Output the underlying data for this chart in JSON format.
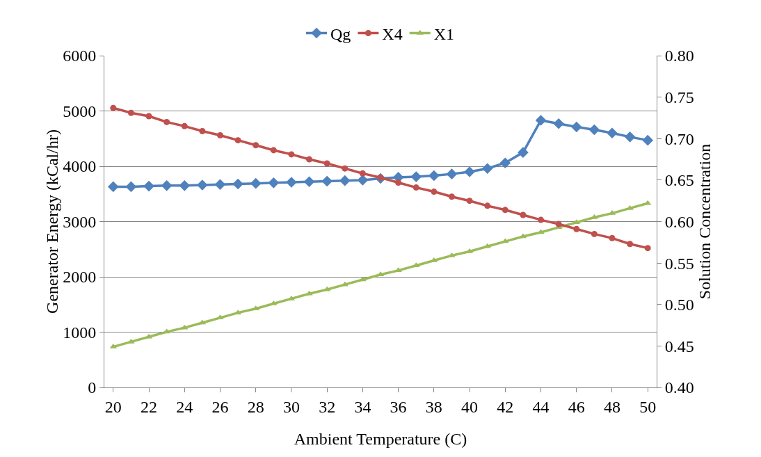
{
  "chart_data": {
    "type": "line",
    "xlabel": "Ambient Temperature (C)",
    "ylabel": "Generator Energy (kCal/hr)",
    "y2label": "Solution Concentration",
    "x": [
      20,
      21,
      22,
      23,
      24,
      25,
      26,
      27,
      28,
      29,
      30,
      31,
      32,
      33,
      34,
      35,
      36,
      37,
      38,
      39,
      40,
      41,
      42,
      43,
      44,
      45,
      46,
      47,
      48,
      49,
      50
    ],
    "xlim": [
      19.5,
      50.5
    ],
    "xticks": [
      20,
      22,
      24,
      26,
      28,
      30,
      32,
      34,
      36,
      38,
      40,
      42,
      44,
      46,
      48,
      50
    ],
    "ylim": [
      0,
      6000
    ],
    "yticks": [
      0,
      1000,
      2000,
      3000,
      4000,
      5000,
      6000
    ],
    "y2lim": [
      0.4,
      0.8
    ],
    "y2ticks": [
      {
        "value": 0.4,
        "label": "0.40"
      },
      {
        "value": 0.45,
        "label": "0.45"
      },
      {
        "value": 0.5,
        "label": "0.50"
      },
      {
        "value": 0.55,
        "label": "0.55"
      },
      {
        "value": 0.6,
        "label": "0.60"
      },
      {
        "value": 0.65,
        "label": "0.65"
      },
      {
        "value": 0.7,
        "label": "0.70"
      },
      {
        "value": 0.75,
        "label": "0.75"
      },
      {
        "value": 0.8,
        "label": "0.80"
      }
    ],
    "grid": "y",
    "legend": "top",
    "series": [
      {
        "name": "Qg",
        "color": "#4f81bd",
        "marker": "diamond",
        "values": [
          3630,
          3630,
          3640,
          3650,
          3650,
          3660,
          3670,
          3680,
          3690,
          3700,
          3710,
          3720,
          3730,
          3740,
          3750,
          3780,
          3800,
          3810,
          3830,
          3860,
          3900,
          3960,
          4060,
          4250,
          4830,
          4770,
          4710,
          4660,
          4600,
          4530,
          4470
        ]
      },
      {
        "name": "X4",
        "color": "#c0504d",
        "marker": "circle",
        "axis": "y2",
        "values": [
          0.737,
          0.731,
          0.727,
          0.72,
          0.715,
          0.709,
          0.704,
          0.698,
          0.692,
          0.686,
          0.681,
          0.675,
          0.67,
          0.664,
          0.658,
          0.653,
          0.647,
          0.641,
          0.636,
          0.63,
          0.625,
          0.619,
          0.614,
          0.608,
          0.602,
          0.597,
          0.591,
          0.585,
          0.58,
          0.573,
          0.568
        ]
      },
      {
        "name": "X1",
        "color": "#9bbb59",
        "marker": "triangle",
        "axis": "y2",
        "values": [
          0.449,
          0.455,
          0.461,
          0.467,
          0.472,
          0.478,
          0.484,
          0.49,
          0.495,
          0.501,
          0.507,
          0.513,
          0.518,
          0.524,
          0.53,
          0.536,
          0.541,
          0.547,
          0.553,
          0.559,
          0.564,
          0.57,
          0.576,
          0.582,
          0.587,
          0.593,
          0.599,
          0.605,
          0.61,
          0.616,
          0.622
        ]
      }
    ]
  }
}
